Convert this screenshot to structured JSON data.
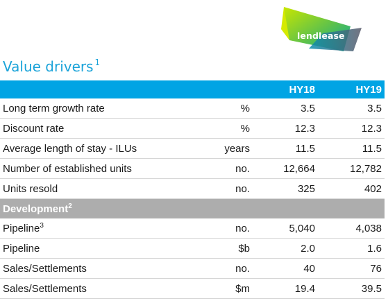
{
  "brand": {
    "logo_text": "lendlease"
  },
  "title": {
    "text": "Value drivers",
    "footnote": "1"
  },
  "columns": {
    "period_1": "HY18",
    "period_2": "HY19"
  },
  "rows": [
    {
      "label": "Long term growth rate",
      "unit": "%",
      "hy18": "3.5",
      "hy19": "3.5"
    },
    {
      "label": "Discount rate",
      "unit": "%",
      "hy18": "12.3",
      "hy19": "12.3"
    },
    {
      "label": "Average length of stay - ILUs",
      "unit": "years",
      "hy18": "11.5",
      "hy19": "11.5"
    },
    {
      "label": "Number of established units",
      "unit": "no.",
      "hy18": "12,664",
      "hy19": "12,782"
    },
    {
      "label": "Units resold",
      "unit": "no.",
      "hy18": "325",
      "hy19": "402"
    }
  ],
  "development": {
    "label": "Development",
    "footnote": "2",
    "rows": [
      {
        "label": "Pipeline",
        "footnote": "3",
        "unit": "no.",
        "hy18": "5,040",
        "hy19": "4,038"
      },
      {
        "label": "Pipeline",
        "unit": "$b",
        "hy18": "2.0",
        "hy19": "1.6"
      },
      {
        "label": "Sales/Settlements",
        "unit": "no.",
        "hy18": "40",
        "hy19": "76"
      },
      {
        "label": "Sales/Settlements",
        "unit": "$m",
        "hy18": "19.4",
        "hy19": "39.5"
      }
    ]
  },
  "colors": {
    "accent_blue": "#00a4e4",
    "title_blue": "#1aa3d9",
    "section_grey": "#adadad"
  }
}
